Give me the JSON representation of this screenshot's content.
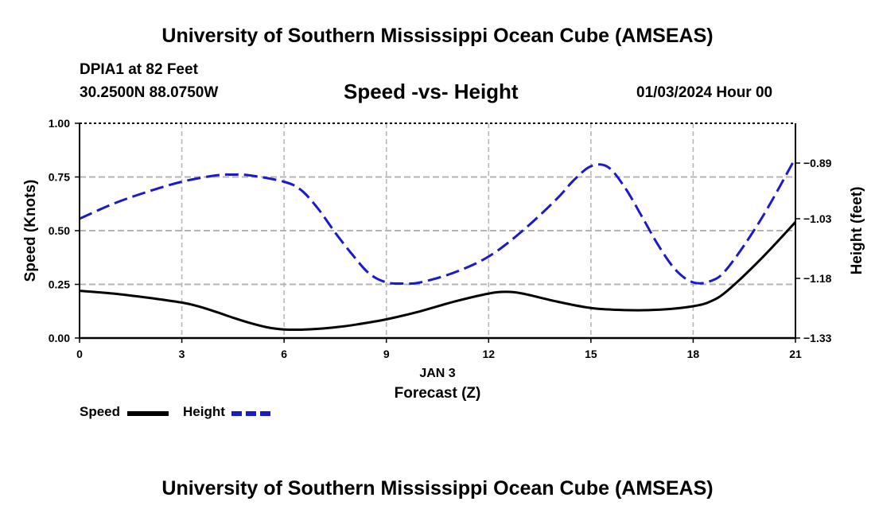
{
  "header": {
    "title": "University of Southern Mississippi Ocean Cube (AMSEAS)",
    "station": "DPIA1 at 82 Feet",
    "coordinates": "30.2500N  88.0750W",
    "subtitle": "Speed -vs- Height",
    "datetime": "01/03/2024 Hour 00"
  },
  "footer": {
    "title": "University of Southern Mississippi Ocean Cube (AMSEAS)"
  },
  "legend": {
    "speed_label": "Speed",
    "height_label": "Height"
  },
  "colors": {
    "speed": "#000000",
    "height": "#1a1acc",
    "grid": "#b4b4b4",
    "axis": "#000000"
  },
  "chart_data": {
    "type": "line",
    "title": "Speed -vs- Height",
    "xlabel": "Forecast (Z)",
    "xdate": "JAN 3",
    "ylabel": "Speed (Knots)",
    "y2label": "Height (feet)",
    "xlim": [
      0,
      21
    ],
    "ylim": [
      0,
      1
    ],
    "y2lim": [
      -1.33,
      -0.79
    ],
    "x_ticks": [
      0,
      3,
      6,
      9,
      12,
      15,
      18,
      21
    ],
    "x_tick_labels": [
      "0",
      "3",
      "6",
      "9",
      "12",
      "15",
      "18",
      "21"
    ],
    "y_ticks": [
      0,
      0.25,
      0.5,
      0.75,
      1.0
    ],
    "y_tick_labels": [
      "0.00",
      "0.25",
      "0.50",
      "0.75",
      "1.00"
    ],
    "y2_ticks": [
      -1.33,
      -1.18,
      -1.03,
      -0.89
    ],
    "y2_tick_labels": [
      "−1.33",
      "−1.18",
      "−1.03",
      "−0.89"
    ],
    "grid": true,
    "series": [
      {
        "name": "Speed",
        "axis": "left",
        "style": "solid",
        "x": [
          0,
          1,
          2,
          3,
          3.5,
          4,
          4.5,
          5,
          5.5,
          6,
          6.5,
          7,
          7.5,
          8,
          9,
          10,
          11,
          12,
          12.5,
          13,
          14,
          15,
          16,
          17,
          18,
          18.5,
          19,
          20,
          21
        ],
        "values": [
          0.22,
          0.207,
          0.188,
          0.165,
          0.147,
          0.122,
          0.095,
          0.07,
          0.05,
          0.04,
          0.039,
          0.043,
          0.05,
          0.06,
          0.087,
          0.125,
          0.17,
          0.207,
          0.215,
          0.207,
          0.17,
          0.14,
          0.13,
          0.132,
          0.148,
          0.17,
          0.22,
          0.37,
          0.54
        ]
      },
      {
        "name": "Height",
        "axis": "right",
        "style": "dashed",
        "x": [
          0,
          1,
          2,
          3,
          4,
          4.5,
          5,
          6,
          6.5,
          7,
          7.5,
          8,
          8.5,
          9,
          9.5,
          10,
          11,
          12,
          13,
          14,
          14.5,
          15,
          15.5,
          16,
          16.5,
          17,
          17.5,
          18,
          18.5,
          19,
          20,
          21
        ],
        "values": [
          -1.03,
          -0.992,
          -0.962,
          -0.937,
          -0.921,
          -0.919,
          -0.921,
          -0.937,
          -0.958,
          -1.005,
          -1.065,
          -1.12,
          -1.168,
          -1.19,
          -1.193,
          -1.19,
          -1.165,
          -1.125,
          -1.06,
          -0.98,
          -0.933,
          -0.898,
          -0.9,
          -0.952,
          -1.025,
          -1.1,
          -1.16,
          -1.19,
          -1.187,
          -1.155,
          -1.03,
          -0.877
        ]
      }
    ]
  }
}
